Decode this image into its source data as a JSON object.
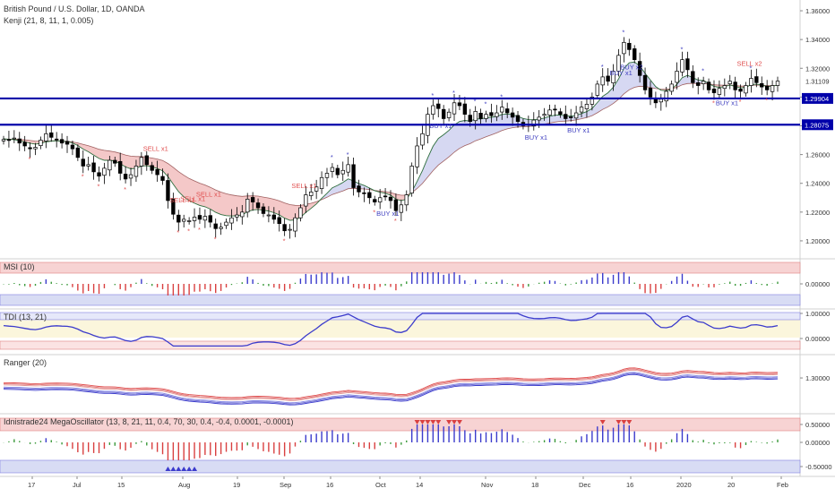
{
  "header": {
    "title": "British Pound / U.S. Dollar, 1D, OANDA",
    "indicator": "Kenji (21, 8, 11, 1, 0.005)"
  },
  "chart_data": {
    "type": "candlestick",
    "x_axis": {
      "ticks": [
        "17",
        "Jul",
        "15",
        "Aug",
        "19",
        "Sep",
        "16",
        "Oct",
        "14",
        "Nov",
        "18",
        "Dec",
        "16",
        "2020",
        "20",
        "Feb"
      ]
    },
    "price_pane": {
      "y_ticks": [
        "1.36000",
        "1.34000",
        "1.32000",
        "1.30000",
        "1.28000",
        "1.26000",
        "1.24000",
        "1.22000",
        "1.20000"
      ],
      "last_price": "1.31109",
      "ylim": [
        1.19,
        1.365
      ],
      "levels": [
        {
          "value": 1.29904,
          "label": "1.29904",
          "color": "#0000aa"
        },
        {
          "value": 1.28075,
          "label": "1.28075",
          "color": "#0000aa"
        }
      ],
      "signals": [
        {
          "text": "SELL x1",
          "type": "sell"
        },
        {
          "text": "SELL x1",
          "type": "sell"
        },
        {
          "text": "SELL x1",
          "type": "sell"
        },
        {
          "text": "SELL x1",
          "type": "sell"
        },
        {
          "text": "SELL x1",
          "type": "sell"
        },
        {
          "text": "BUY x1",
          "type": "buy"
        },
        {
          "text": "BUY x1",
          "type": "buy"
        },
        {
          "text": "BUY x1",
          "type": "buy"
        },
        {
          "text": "BUY x1",
          "type": "buy"
        },
        {
          "text": "BUY x1",
          "type": "buy"
        },
        {
          "text": "BUY x2",
          "type": "buy"
        },
        {
          "text": "BUY x1",
          "type": "buy"
        },
        {
          "text": "SELL x2",
          "type": "sell"
        }
      ],
      "series": [
        {
          "name": "close",
          "values": [
            1.2705,
            1.2698,
            1.2715,
            1.268,
            1.266,
            1.264,
            1.265,
            1.27,
            1.2745,
            1.272,
            1.2705,
            1.268,
            1.2672,
            1.264,
            1.258,
            1.252,
            1.253,
            1.248,
            1.245,
            1.2505,
            1.256,
            1.254,
            1.247,
            1.243,
            1.246,
            1.252,
            1.258,
            1.253,
            1.249,
            1.246,
            1.242,
            1.228,
            1.2185,
            1.213,
            1.215,
            1.214,
            1.2165,
            1.215,
            1.217,
            1.213,
            1.2085,
            1.2095,
            1.213,
            1.216,
            1.218,
            1.22,
            1.229,
            1.227,
            1.223,
            1.219,
            1.218,
            1.215,
            1.212,
            1.207,
            1.208,
            1.216,
            1.223,
            1.232,
            1.234,
            1.2375,
            1.244,
            1.247,
            1.251,
            1.246,
            1.249,
            1.253,
            1.237,
            1.234,
            1.233,
            1.23,
            1.227,
            1.23,
            1.231,
            1.228,
            1.221,
            1.225,
            1.232,
            1.252,
            1.266,
            1.2745,
            1.288,
            1.294,
            1.292,
            1.285,
            1.2895,
            1.296,
            1.294,
            1.288,
            1.283,
            1.29,
            1.285,
            1.288,
            1.287,
            1.289,
            1.293,
            1.289,
            1.286,
            1.283,
            1.28,
            1.281,
            1.284,
            1.286,
            1.288,
            1.291,
            1.291,
            1.288,
            1.285,
            1.286,
            1.289,
            1.293,
            1.295,
            1.3,
            1.309,
            1.314,
            1.311,
            1.318,
            1.329,
            1.338,
            1.333,
            1.326,
            1.315,
            1.305,
            1.3,
            1.296,
            1.2985,
            1.304,
            1.309,
            1.318,
            1.326,
            1.319,
            1.31,
            1.308,
            1.311,
            1.305,
            1.303,
            1.306,
            1.308,
            1.311,
            1.305,
            1.304,
            1.308,
            1.313,
            1.31,
            1.307,
            1.305,
            1.308,
            1.3111
          ]
        },
        {
          "name": "ma_fast",
          "values": [
            1.271,
            1.2706,
            1.2704,
            1.2697,
            1.2688,
            1.2679,
            1.2673,
            1.2677,
            1.2688,
            1.2694,
            1.2696,
            1.2693,
            1.269,
            1.2681,
            1.2663,
            1.2638,
            1.2619,
            1.2596,
            1.2573,
            1.256,
            1.256,
            1.2555,
            1.2536,
            1.2514,
            1.2501,
            1.2505,
            1.252,
            1.2522,
            1.2515,
            1.2503,
            1.2487,
            1.2446,
            1.2394,
            1.2342,
            1.2306,
            1.2279,
            1.2262,
            1.2246,
            1.2237,
            1.2221,
            1.2198,
            1.2183,
            1.2175,
            1.2173,
            1.2175,
            1.218,
            1.2202,
            1.2215,
            1.2218,
            1.2213,
            1.2207,
            1.2196,
            1.2181,
            1.2158,
            1.2142,
            1.2146,
            1.2164,
            1.2197,
            1.2226,
            1.2257,
            1.2296,
            1.2331,
            1.2369,
            1.2386,
            1.2406,
            1.2431,
            1.2416,
            1.2399,
            1.2385,
            1.2368,
            1.2349,
            1.2338,
            1.2331,
            1.2318,
            1.229,
            1.228,
            1.229,
            1.2343,
            1.2413,
            1.2488,
            1.2577,
            1.2657,
            1.2712,
            1.2738,
            1.2768,
            1.2806,
            1.283,
            1.2837,
            1.2833,
            1.2848,
            1.2848,
            1.2856,
            1.2859,
            1.2866,
            1.2879,
            1.2882,
            1.2877,
            1.2865,
            1.2851,
            1.2843,
            1.2842,
            1.2846,
            1.2854,
            1.2866,
            1.2874,
            1.2875,
            1.2869,
            1.2867,
            1.2873,
            1.2885,
            1.2899,
            1.2921,
            1.2962,
            1.3005,
            1.303,
            1.3068,
            1.3127,
            1.3199,
            1.3238,
            1.3244,
            1.3215,
            1.3165,
            1.3118,
            1.3072,
            1.3047,
            1.3044,
            1.3054,
            1.3089,
            1.3135,
            1.3151,
            1.3135,
            1.3118,
            1.3115,
            1.3094,
            1.3073,
            1.3068,
            1.3072,
            1.3083,
            1.3073,
            1.3064,
            1.3068,
            1.3086,
            1.309,
            1.3084,
            1.3073,
            1.3075,
            1.3084
          ]
        },
        {
          "name": "ma_slow",
          "values": [
            1.2708,
            1.2707,
            1.2707,
            1.2705,
            1.2702,
            1.2698,
            1.2694,
            1.2693,
            1.2694,
            1.2695,
            1.2695,
            1.2694,
            1.2692,
            1.2688,
            1.2681,
            1.2671,
            1.2661,
            1.265,
            1.2637,
            1.2629,
            1.2624,
            1.2618,
            1.2608,
            1.2597,
            1.2589,
            1.2586,
            1.2586,
            1.2582,
            1.2576,
            1.2569,
            1.2559,
            1.2538,
            1.2511,
            1.2481,
            1.2456,
            1.2434,
            1.2417,
            1.2401,
            1.2388,
            1.2372,
            1.2354,
            1.2339,
            1.2327,
            1.2319,
            1.2313,
            1.2309,
            1.2312,
            1.2313,
            1.2311,
            1.2304,
            1.2298,
            1.2289,
            1.2278,
            1.2264,
            1.2252,
            1.2247,
            1.2246,
            1.2253,
            1.2261,
            1.2272,
            1.2287,
            1.2303,
            1.2322,
            1.2334,
            1.2347,
            1.2363,
            1.2364,
            1.2363,
            1.2361,
            1.2357,
            1.235,
            1.2346,
            1.2342,
            1.2336,
            1.2324,
            1.2317,
            1.2317,
            1.2335,
            1.2364,
            1.2399,
            1.2443,
            1.2488,
            1.2527,
            1.2555,
            1.2584,
            1.2616,
            1.2643,
            1.2662,
            1.2676,
            1.2696,
            1.2709,
            1.2724,
            1.2737,
            1.2751,
            1.2767,
            1.2779,
            1.2787,
            1.2792,
            1.2793,
            1.2795,
            1.2799,
            1.2804,
            1.2811,
            1.2819,
            1.2826,
            1.2831,
            1.2833,
            1.2836,
            1.2841,
            1.2849,
            1.2858,
            1.2871,
            1.2891,
            1.2914,
            1.2932,
            1.2955,
            1.2985,
            1.3022,
            1.305,
            1.3068,
            1.3075,
            1.3073,
            1.3067,
            1.3059,
            1.3055,
            1.3054,
            1.3057,
            1.3068,
            1.3085,
            1.3094,
            1.3095,
            1.3094,
            1.3095,
            1.3091,
            1.3085,
            1.3083,
            1.3082,
            1.3084,
            1.308,
            1.3076,
            1.3076,
            1.3081,
            1.3083,
            1.3082,
            1.3079,
            1.3079,
            1.3082
          ]
        }
      ]
    },
    "panes": [
      {
        "id": "msi",
        "title": "MSI (10)",
        "y_ticks": [
          "0.00000"
        ]
      },
      {
        "id": "tdi",
        "title": "TDI (13, 21)",
        "y_ticks": [
          "1.00000",
          "0.00000"
        ]
      },
      {
        "id": "ranger",
        "title": "Ranger (20)",
        "y_ticks": [
          "1.30000"
        ]
      },
      {
        "id": "mega",
        "title": "Idnistrade24 MegaOscillator (13, 8, 21, 11, 0.4, 70, 30, 0.4, -0.4, 0.0001, -0.0001)",
        "y_ticks": [
          "0.50000",
          "0.00000",
          "-0.50000"
        ]
      }
    ]
  },
  "colors": {
    "up": "#ffffff",
    "down": "#000000",
    "level": "#0000aa",
    "sell": "#e05050",
    "buy": "#4040c0",
    "cloud_bear": "#f4c8c8",
    "cloud_bull": "#d6d8f2",
    "tdi_zone": "#fbf6dc",
    "band_red": "#f7d3d3",
    "band_blue": "#d8dcf4"
  }
}
